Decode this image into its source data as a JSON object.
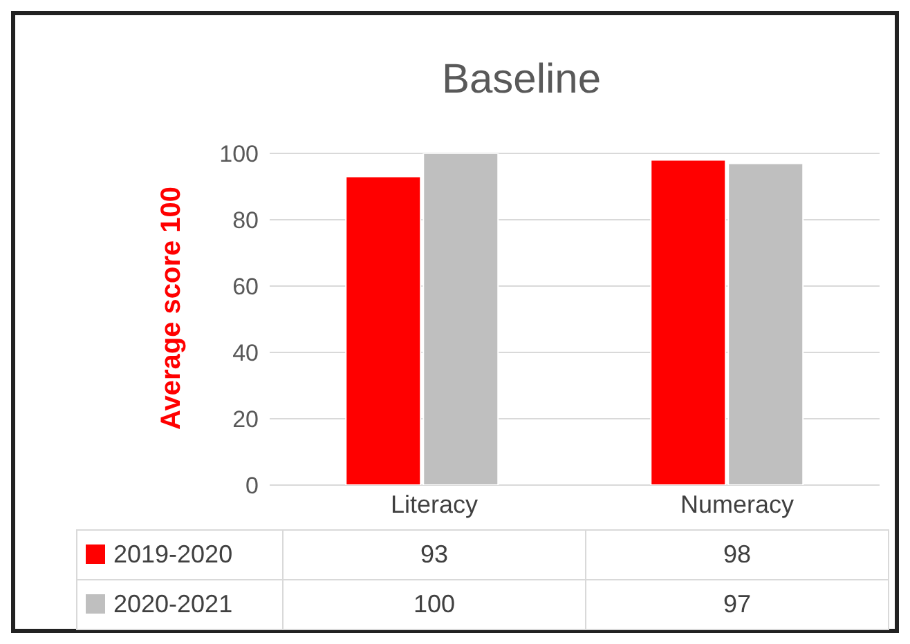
{
  "chart_data": {
    "type": "bar",
    "title": "Baseline",
    "ylabel": "Average score 100",
    "categories": [
      "Literacy",
      "Numeracy"
    ],
    "series": [
      {
        "name": "2019-2020",
        "color": "#ff0000",
        "values": [
          93,
          98
        ]
      },
      {
        "name": "2020-2021",
        "color": "#bfbfbf",
        "values": [
          100,
          97
        ]
      }
    ],
    "ylim": [
      0,
      100
    ],
    "yticks": [
      0,
      20,
      40,
      60,
      80,
      100
    ],
    "grid": "y",
    "legend": "bottom",
    "data_labels": true
  }
}
